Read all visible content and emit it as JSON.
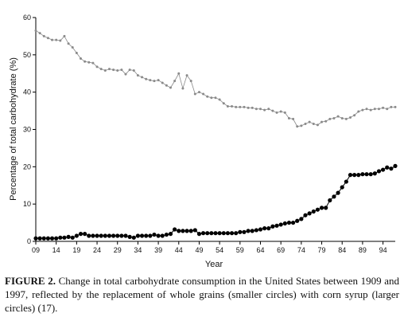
{
  "caption": {
    "label": "FIGURE 2.",
    "text": "Change in total carbohydrate consumption in the United States between 1909 and 1997, reflected by the replacement of whole grains (smaller circles) with corn syrup (larger circles) (17)."
  },
  "chart_data": {
    "type": "line",
    "title": "",
    "xlabel": "Year",
    "ylabel": "Percentage of total carbohydrate (%)",
    "xlim": [
      1909,
      1997
    ],
    "ylim": [
      0,
      60
    ],
    "y_ticks": [
      0,
      10,
      20,
      30,
      40,
      50,
      60
    ],
    "x_tick_labels": [
      "09",
      "14",
      "19",
      "24",
      "29",
      "34",
      "39",
      "44",
      "49",
      "54",
      "59",
      "64",
      "69",
      "74",
      "79",
      "84",
      "89",
      "94"
    ],
    "x_tick_years": [
      1909,
      1914,
      1919,
      1924,
      1929,
      1934,
      1939,
      1944,
      1949,
      1954,
      1959,
      1964,
      1969,
      1974,
      1979,
      1984,
      1989,
      1994
    ],
    "grid": false,
    "series": [
      {
        "marker": "small-circle",
        "color": "#8a8a8a",
        "x": [
          1909,
          1910,
          1911,
          1912,
          1913,
          1914,
          1915,
          1916,
          1917,
          1918,
          1919,
          1920,
          1921,
          1922,
          1923,
          1924,
          1925,
          1926,
          1927,
          1928,
          1929,
          1930,
          1931,
          1932,
          1933,
          1934,
          1935,
          1936,
          1937,
          1938,
          1939,
          1940,
          1941,
          1942,
          1943,
          1944,
          1945,
          1946,
          1947,
          1948,
          1949,
          1950,
          1951,
          1952,
          1953,
          1954,
          1955,
          1956,
          1957,
          1958,
          1959,
          1960,
          1961,
          1962,
          1963,
          1964,
          1965,
          1966,
          1967,
          1968,
          1969,
          1970,
          1971,
          1972,
          1973,
          1974,
          1975,
          1976,
          1977,
          1978,
          1979,
          1980,
          1981,
          1982,
          1983,
          1984,
          1985,
          1986,
          1987,
          1988,
          1989,
          1990,
          1991,
          1992,
          1993,
          1994,
          1995,
          1996,
          1997
        ],
        "values": [
          56.5,
          55.8,
          55.0,
          54.5,
          54.0,
          54.0,
          53.8,
          55.0,
          53.0,
          52.0,
          50.5,
          49.0,
          48.2,
          48.0,
          47.8,
          46.8,
          46.2,
          45.8,
          46.2,
          46.0,
          45.8,
          46.0,
          44.8,
          46.0,
          45.8,
          44.5,
          44.0,
          43.5,
          43.2,
          43.0,
          43.2,
          42.5,
          41.8,
          41.2,
          43.0,
          45.0,
          41.0,
          44.5,
          43.0,
          39.5,
          40.0,
          39.5,
          38.8,
          38.5,
          38.5,
          38.0,
          37.0,
          36.2,
          36.2,
          36.0,
          36.0,
          36.0,
          35.8,
          35.8,
          35.5,
          35.5,
          35.2,
          35.5,
          35.0,
          34.5,
          34.8,
          34.5,
          33.0,
          32.8,
          30.8,
          31.0,
          31.5,
          32.0,
          31.5,
          31.2,
          32.0,
          32.2,
          32.8,
          33.0,
          33.5,
          33.0,
          32.8,
          33.2,
          33.8,
          34.8,
          35.2,
          35.5,
          35.2,
          35.5,
          35.5,
          35.8,
          35.5,
          36.0,
          36.0
        ]
      },
      {
        "marker": "large-circle",
        "color": "#000000",
        "x": [
          1909,
          1910,
          1911,
          1912,
          1913,
          1914,
          1915,
          1916,
          1917,
          1918,
          1919,
          1920,
          1921,
          1922,
          1923,
          1924,
          1925,
          1926,
          1927,
          1928,
          1929,
          1930,
          1931,
          1932,
          1933,
          1934,
          1935,
          1936,
          1937,
          1938,
          1939,
          1940,
          1941,
          1942,
          1943,
          1944,
          1945,
          1946,
          1947,
          1948,
          1949,
          1950,
          1951,
          1952,
          1953,
          1954,
          1955,
          1956,
          1957,
          1958,
          1959,
          1960,
          1961,
          1962,
          1963,
          1964,
          1965,
          1966,
          1967,
          1968,
          1969,
          1970,
          1971,
          1972,
          1973,
          1974,
          1975,
          1976,
          1977,
          1978,
          1979,
          1980,
          1981,
          1982,
          1983,
          1984,
          1985,
          1986,
          1987,
          1988,
          1989,
          1990,
          1991,
          1992,
          1993,
          1994,
          1995,
          1996,
          1997
        ],
        "values": [
          0.8,
          0.8,
          0.8,
          0.8,
          0.8,
          0.8,
          1.0,
          1.0,
          1.2,
          1.0,
          1.5,
          2.0,
          2.0,
          1.5,
          1.5,
          1.5,
          1.5,
          1.5,
          1.5,
          1.5,
          1.5,
          1.5,
          1.5,
          1.2,
          1.0,
          1.5,
          1.5,
          1.5,
          1.5,
          1.8,
          1.5,
          1.5,
          1.8,
          2.0,
          3.2,
          2.8,
          2.8,
          2.8,
          2.8,
          3.0,
          2.0,
          2.2,
          2.2,
          2.2,
          2.2,
          2.2,
          2.2,
          2.2,
          2.2,
          2.2,
          2.5,
          2.5,
          2.8,
          2.8,
          3.0,
          3.2,
          3.5,
          3.5,
          4.0,
          4.2,
          4.5,
          4.8,
          5.0,
          5.0,
          5.5,
          6.0,
          7.0,
          7.5,
          8.0,
          8.5,
          9.0,
          9.0,
          11.0,
          12.0,
          13.0,
          14.5,
          16.0,
          17.8,
          17.8,
          17.8,
          18.0,
          18.0,
          18.0,
          18.2,
          18.8,
          19.2,
          19.8,
          19.5,
          20.2
        ]
      }
    ]
  }
}
